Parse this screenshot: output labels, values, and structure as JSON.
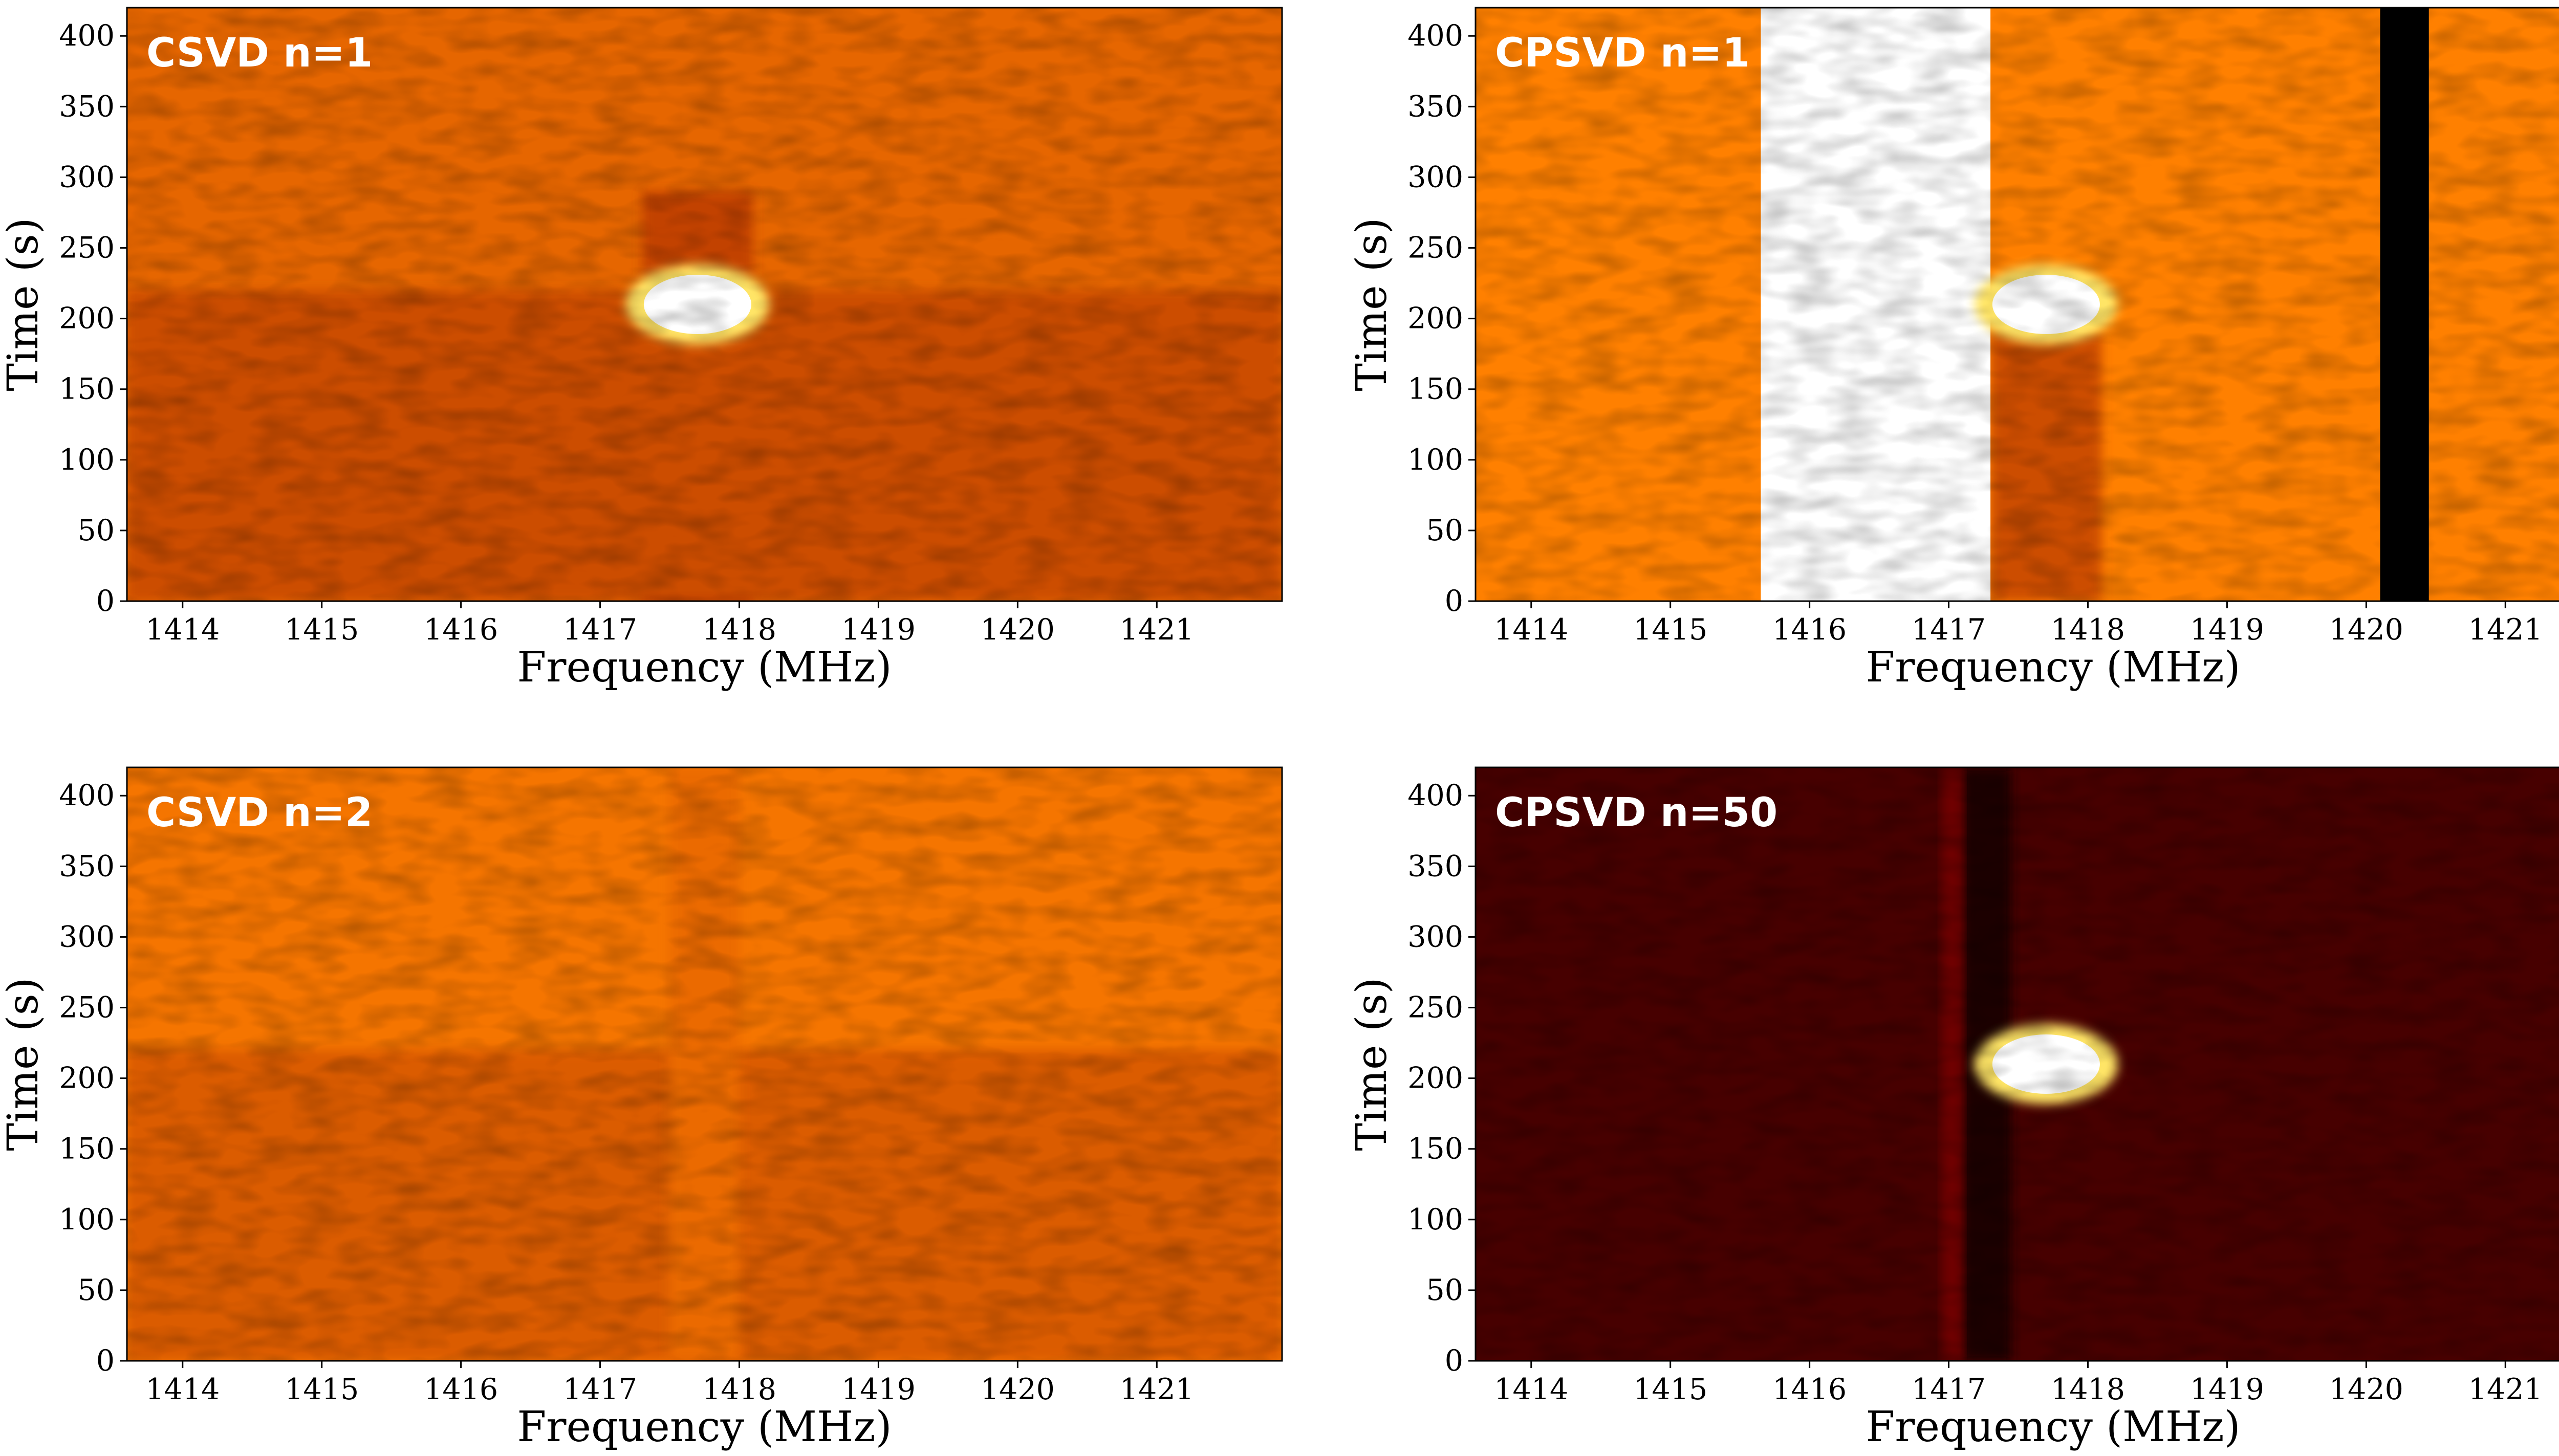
{
  "chart_data": [
    {
      "type": "heatmap",
      "title": "CSVD n=1",
      "xlabel": "Frequency (MHz)",
      "ylabel": "Time (s)",
      "xlim": [
        1413.6,
        1421.9
      ],
      "ylim": [
        0,
        420
      ],
      "xticks": [
        1414,
        1415,
        1416,
        1417,
        1418,
        1419,
        1420,
        1421
      ],
      "yticks": [
        0,
        50,
        100,
        150,
        200,
        250,
        300,
        350,
        400
      ],
      "colormap": "afmhot",
      "background_level": 0.45,
      "features": [
        {
          "kind": "hot-spot",
          "frequency_mhz": 1417.7,
          "time_s": 210,
          "level": 1.0
        },
        {
          "kind": "dark-band",
          "frequency_mhz_range": [
            1417.3,
            1418.1
          ],
          "time_s_range": [
            0,
            190
          ],
          "level": 0.32
        },
        {
          "kind": "dark-band",
          "frequency_mhz_range": [
            1417.3,
            1418.1
          ],
          "time_s_range": [
            230,
            290
          ],
          "level": 0.38
        },
        {
          "kind": "dark-band",
          "frequency_mhz_range": [
            1413.6,
            1421.9
          ],
          "time_s_range": [
            0,
            220
          ],
          "level": 0.4
        }
      ]
    },
    {
      "type": "heatmap",
      "title": "CPSVD n=1",
      "xlabel": "Frequency (MHz)",
      "ylabel": "Time (s)",
      "xlim": [
        1413.6,
        1421.9
      ],
      "ylim": [
        0,
        420
      ],
      "xticks": [
        1414,
        1415,
        1416,
        1417,
        1418,
        1419,
        1420,
        1421
      ],
      "yticks": [
        0,
        50,
        100,
        150,
        200,
        250,
        300,
        350,
        400
      ],
      "colormap": "afmhot",
      "background_level": 0.5,
      "features": [
        {
          "kind": "saturated-band",
          "frequency_mhz_range": [
            1415.65,
            1417.3
          ],
          "time_s_range": [
            0,
            420
          ],
          "level": 1.0
        },
        {
          "kind": "black-band",
          "frequency_mhz_range": [
            1420.1,
            1420.45
          ],
          "time_s_range": [
            0,
            420
          ],
          "level": 0.0
        },
        {
          "kind": "hot-spot",
          "frequency_mhz": 1417.7,
          "time_s": 210,
          "level": 1.0
        },
        {
          "kind": "dark-band",
          "frequency_mhz_range": [
            1417.3,
            1418.1
          ],
          "time_s_range": [
            0,
            190
          ],
          "level": 0.4
        }
      ]
    },
    {
      "type": "heatmap",
      "title": "CSVD n=2",
      "xlabel": "Frequency (MHz)",
      "ylabel": "Time (s)",
      "xlim": [
        1413.6,
        1421.9
      ],
      "ylim": [
        0,
        420
      ],
      "xticks": [
        1414,
        1415,
        1416,
        1417,
        1418,
        1419,
        1420,
        1421
      ],
      "yticks": [
        0,
        50,
        100,
        150,
        200,
        250,
        300,
        350,
        400
      ],
      "colormap": "afmhot",
      "background_level": 0.48,
      "features": [
        {
          "kind": "dark-band",
          "frequency_mhz_range": [
            1413.6,
            1421.9
          ],
          "time_s_range": [
            0,
            220
          ],
          "level": 0.43
        },
        {
          "kind": "faint-stripe",
          "frequency_mhz_range": [
            1417.5,
            1418.0
          ],
          "time_s_range": [
            0,
            420
          ],
          "level": 0.46
        }
      ]
    },
    {
      "type": "heatmap",
      "title": "CPSVD n=50",
      "xlabel": "Frequency (MHz)",
      "ylabel": "Time (s)",
      "xlim": [
        1413.6,
        1421.9
      ],
      "ylim": [
        0,
        420
      ],
      "xticks": [
        1414,
        1415,
        1416,
        1417,
        1418,
        1419,
        1420,
        1421
      ],
      "yticks": [
        0,
        50,
        100,
        150,
        200,
        250,
        300,
        350,
        400
      ],
      "colormap": "afmhot",
      "background_level": 0.14,
      "features": [
        {
          "kind": "hot-spot",
          "frequency_mhz": 1417.7,
          "time_s": 210,
          "level": 1.0
        },
        {
          "kind": "faint-stripe",
          "frequency_mhz_range": [
            1416.95,
            1417.1
          ],
          "time_s_range": [
            0,
            420
          ],
          "level": 0.22
        },
        {
          "kind": "dark-band",
          "frequency_mhz_range": [
            1417.1,
            1417.45
          ],
          "time_s_range": [
            0,
            420
          ],
          "level": 0.05
        }
      ]
    }
  ]
}
